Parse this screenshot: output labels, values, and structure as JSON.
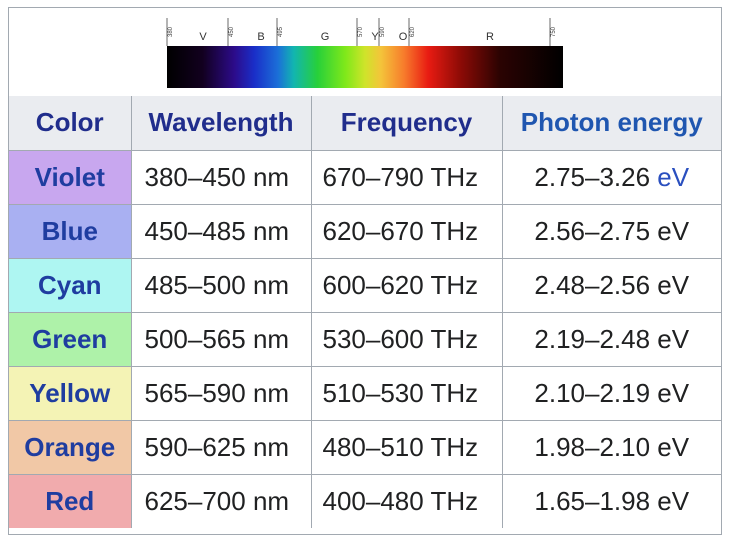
{
  "spectrum": {
    "ticks": [
      "380",
      "450",
      "495",
      "570",
      "590",
      "620",
      "750"
    ],
    "bands": [
      "V",
      "B",
      "G",
      "Y",
      "O",
      "R"
    ]
  },
  "table": {
    "headers": [
      "Color",
      "Wavelength",
      "Frequency",
      "Photon energy"
    ],
    "rows": [
      {
        "color": "Violet",
        "bg": "#c8a7ef",
        "wavelength": "380–450 nm",
        "frequency": "670–790 THz",
        "energy": "2.75–3.26",
        "energy_unit": "eV"
      },
      {
        "color": "Blue",
        "bg": "#a9b0f2",
        "wavelength": "450–485 nm",
        "frequency": "620–670 THz",
        "energy": "2.56–2.75",
        "energy_unit": "eV"
      },
      {
        "color": "Cyan",
        "bg": "#aef6f2",
        "wavelength": "485–500 nm",
        "frequency": "600–620 THz",
        "energy": "2.48–2.56",
        "energy_unit": "eV"
      },
      {
        "color": "Green",
        "bg": "#aef2a9",
        "wavelength": "500–565 nm",
        "frequency": "530–600 THz",
        "energy": "2.19–2.48",
        "energy_unit": "eV"
      },
      {
        "color": "Yellow",
        "bg": "#f4f3b5",
        "wavelength": "565–590 nm",
        "frequency": "510–530 THz",
        "energy": "2.10–2.19",
        "energy_unit": "eV"
      },
      {
        "color": "Orange",
        "bg": "#f1c8a6",
        "wavelength": "590–625 nm",
        "frequency": "480–510 THz",
        "energy": "1.98–2.10",
        "energy_unit": "eV"
      },
      {
        "color": "Red",
        "bg": "#f1abad",
        "wavelength": "625–700 nm",
        "frequency": "400–480 THz",
        "energy": "1.65–1.98",
        "energy_unit": "eV"
      }
    ]
  }
}
